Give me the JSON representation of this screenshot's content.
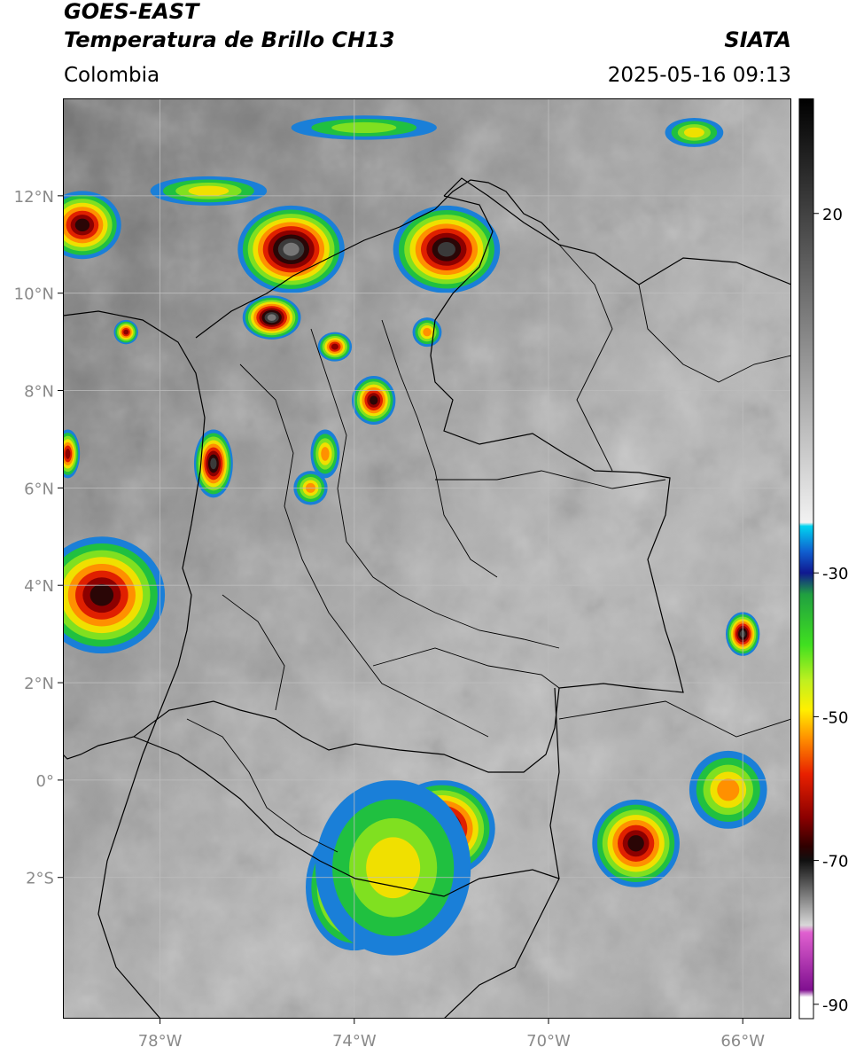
{
  "header": {
    "satellite": "GOES-EAST",
    "product": "Temperatura de Brillo CH13",
    "brand": "SIATA",
    "region": "Colombia",
    "timestamp": "2025-05-16 09:13"
  },
  "map": {
    "lon_range": [
      -80,
      -65
    ],
    "lat_range": [
      -4.9,
      14
    ],
    "x_ticks": [
      {
        "value": -78,
        "label": "78°W"
      },
      {
        "value": -74,
        "label": "74°W"
      },
      {
        "value": -70,
        "label": "70°W"
      },
      {
        "value": -66,
        "label": "66°W"
      }
    ],
    "y_ticks": [
      {
        "value": 12,
        "label": "12°N"
      },
      {
        "value": 10,
        "label": "10°N"
      },
      {
        "value": 8,
        "label": "8°N"
      },
      {
        "value": 6,
        "label": "6°N"
      },
      {
        "value": 4,
        "label": "4°N"
      },
      {
        "value": 2,
        "label": "2°N"
      },
      {
        "value": 0,
        "label": "0°"
      },
      {
        "value": -2,
        "label": "2°S"
      }
    ],
    "grid": true,
    "storm_cells": [
      {
        "lon": -75.3,
        "lat": 10.9,
        "r_lon": 1.1,
        "r_lat": 0.9,
        "intensity": 1.0
      },
      {
        "lon": -75.7,
        "lat": 9.5,
        "r_lon": 0.6,
        "r_lat": 0.45,
        "intensity": 0.95
      },
      {
        "lon": -79.6,
        "lat": 11.4,
        "r_lon": 0.8,
        "r_lat": 0.7,
        "intensity": 0.75
      },
      {
        "lon": -72.1,
        "lat": 10.9,
        "r_lon": 1.1,
        "r_lat": 0.9,
        "intensity": 0.85
      },
      {
        "lon": -73.6,
        "lat": 7.8,
        "r_lon": 0.45,
        "r_lat": 0.5,
        "intensity": 0.75
      },
      {
        "lon": -74.4,
        "lat": 8.9,
        "r_lon": 0.35,
        "r_lat": 0.3,
        "intensity": 0.7
      },
      {
        "lon": -76.9,
        "lat": 6.5,
        "r_lon": 0.4,
        "r_lat": 0.7,
        "intensity": 0.85
      },
      {
        "lon": -79.9,
        "lat": 6.7,
        "r_lon": 0.25,
        "r_lat": 0.5,
        "intensity": 0.7
      },
      {
        "lon": -79.2,
        "lat": 3.8,
        "r_lon": 1.3,
        "r_lat": 1.2,
        "intensity": 0.8
      },
      {
        "lon": -74.6,
        "lat": 6.7,
        "r_lon": 0.3,
        "r_lat": 0.5,
        "intensity": 0.45
      },
      {
        "lon": -74.9,
        "lat": 6.0,
        "r_lon": 0.35,
        "r_lat": 0.35,
        "intensity": 0.45
      },
      {
        "lon": -72.2,
        "lat": -1.0,
        "r_lon": 1.1,
        "r_lat": 1.0,
        "intensity": 0.85
      },
      {
        "lon": -74.0,
        "lat": -2.2,
        "r_lon": 1.0,
        "r_lat": 1.3,
        "intensity": 0.8
      },
      {
        "lon": -73.2,
        "lat": -1.8,
        "r_lon": 1.6,
        "r_lat": 1.8,
        "intensity": 0.4
      },
      {
        "lon": -68.2,
        "lat": -1.3,
        "r_lon": 0.9,
        "r_lat": 0.9,
        "intensity": 0.8
      },
      {
        "lon": -66.3,
        "lat": -0.2,
        "r_lon": 0.8,
        "r_lat": 0.8,
        "intensity": 0.5
      },
      {
        "lon": -66.0,
        "lat": 3.0,
        "r_lon": 0.35,
        "r_lat": 0.45,
        "intensity": 0.9
      },
      {
        "lon": -72.5,
        "lat": 9.2,
        "r_lon": 0.3,
        "r_lat": 0.3,
        "intensity": 0.5
      },
      {
        "lon": -77.0,
        "lat": 12.1,
        "r_lon": 1.2,
        "r_lat": 0.3,
        "intensity": 0.35
      },
      {
        "lon": -73.8,
        "lat": 13.4,
        "r_lon": 1.5,
        "r_lat": 0.25,
        "intensity": 0.3
      },
      {
        "lon": -67.0,
        "lat": 13.3,
        "r_lon": 0.6,
        "r_lat": 0.3,
        "intensity": 0.35
      },
      {
        "lon": -78.7,
        "lat": 9.2,
        "r_lon": 0.25,
        "r_lat": 0.25,
        "intensity": 0.7
      }
    ]
  },
  "colorbar": {
    "range": [
      -92,
      36
    ],
    "ticks": [
      {
        "value": 20,
        "label": "20"
      },
      {
        "value": -30,
        "label": "-30"
      },
      {
        "value": -50,
        "label": "-50"
      },
      {
        "value": -70,
        "label": "-70"
      },
      {
        "value": -90,
        "label": "-90"
      }
    ],
    "color_stops": [
      {
        "value": 36,
        "color": "#000000"
      },
      {
        "value": -23,
        "color": "#f2f2f2"
      },
      {
        "value": -23.5,
        "color": "#00d4f0"
      },
      {
        "value": -27,
        "color": "#1060d0"
      },
      {
        "value": -30,
        "color": "#101890"
      },
      {
        "value": -33,
        "color": "#20a040"
      },
      {
        "value": -40,
        "color": "#40e020"
      },
      {
        "value": -45,
        "color": "#c0f020"
      },
      {
        "value": -49,
        "color": "#fff000"
      },
      {
        "value": -53,
        "color": "#ff9000"
      },
      {
        "value": -58,
        "color": "#e82000"
      },
      {
        "value": -64,
        "color": "#8c0000"
      },
      {
        "value": -68,
        "color": "#300000"
      },
      {
        "value": -70,
        "color": "#101010"
      },
      {
        "value": -79,
        "color": "#d8d8d8"
      },
      {
        "value": -80,
        "color": "#e060d0"
      },
      {
        "value": -88,
        "color": "#801090"
      },
      {
        "value": -89,
        "color": "#ffffff"
      },
      {
        "value": -92,
        "color": "#ffffff"
      }
    ]
  }
}
